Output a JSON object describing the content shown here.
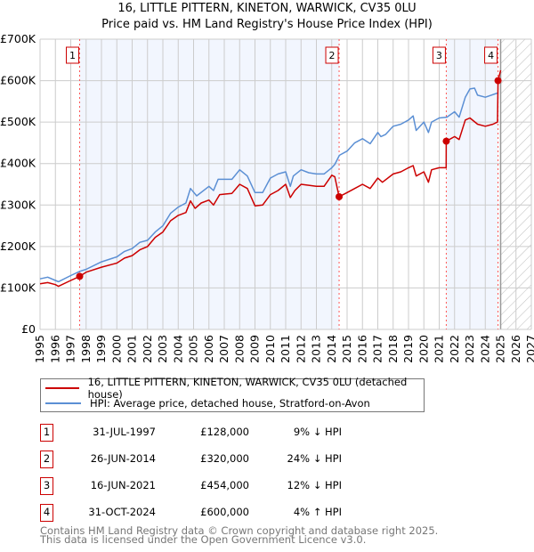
{
  "title_line1": "16, LITTLE PITTERN, KINETON, WARWICK, CV35 0LU",
  "title_line2": "Price paid vs. HM Land Registry's House Price Index (HPI)",
  "chart_data": {
    "type": "line",
    "title": "16, LITTLE PITTERN, KINETON, WARWICK, CV35 0LU — Price paid vs. HM Land Registry's House Price Index (HPI)",
    "xlim": [
      1995,
      2027
    ],
    "ylim": [
      0,
      700000
    ],
    "y_ticks": [
      {
        "v": 0,
        "label": "£0"
      },
      {
        "v": 100000,
        "label": "£100K"
      },
      {
        "v": 200000,
        "label": "£200K"
      },
      {
        "v": 300000,
        "label": "£300K"
      },
      {
        "v": 400000,
        "label": "£400K"
      },
      {
        "v": 500000,
        "label": "£500K"
      },
      {
        "v": 600000,
        "label": "£600K"
      },
      {
        "v": 700000,
        "label": "£700K"
      }
    ],
    "x_ticks": [
      "1995",
      "1996",
      "1997",
      "1998",
      "1999",
      "2000",
      "2001",
      "2002",
      "2003",
      "2004",
      "2005",
      "2006",
      "2007",
      "2008",
      "2009",
      "2010",
      "2011",
      "2012",
      "2013",
      "2014",
      "2015",
      "2016",
      "2017",
      "2018",
      "2019",
      "2020",
      "2021",
      "2022",
      "2023",
      "2024",
      "2025",
      "2026",
      "2027"
    ],
    "grid": true,
    "forecast_start": 2025,
    "series": [
      {
        "name": "16, LITTLE PITTERN, KINETON, WARWICK, CV35 0LU (detached house)",
        "color": "#cc0000",
        "x": [
          1995,
          1995.5,
          1996,
          1996.2,
          1997,
          1997.58,
          1998,
          1999,
          2000,
          2000.5,
          2001,
          2001.5,
          2002,
          2002.5,
          2003,
          2003.5,
          2004,
          2004.5,
          2004.8,
          2005.1,
          2005.5,
          2006,
          2006.3,
          2006.7,
          2007.5,
          2008,
          2008.5,
          2009,
          2009.5,
          2010,
          2010.5,
          2011,
          2011.3,
          2011.6,
          2012,
          2013,
          2013.5,
          2014,
          2014.2,
          2014.48,
          2015,
          2015.5,
          2016,
          2016.5,
          2017,
          2017.3,
          2018,
          2018.5,
          2019,
          2019.3,
          2019.5,
          2020,
          2020.3,
          2020.5,
          2021,
          2021.45,
          2021.46,
          2022,
          2022.3,
          2022.7,
          2023,
          2023.5,
          2024,
          2024.5,
          2024.8,
          2024.83,
          2025
        ],
        "y": [
          110000,
          113000,
          108000,
          104000,
          118000,
          128000,
          138000,
          150000,
          160000,
          172000,
          178000,
          192000,
          200000,
          222000,
          235000,
          262000,
          275000,
          282000,
          310000,
          292000,
          305000,
          312000,
          300000,
          325000,
          328000,
          350000,
          340000,
          298000,
          300000,
          325000,
          335000,
          350000,
          318000,
          335000,
          350000,
          345000,
          345000,
          372000,
          368000,
          320000,
          330000,
          340000,
          350000,
          340000,
          365000,
          355000,
          375000,
          380000,
          390000,
          395000,
          370000,
          380000,
          355000,
          385000,
          390000,
          390000,
          454000,
          465000,
          458000,
          505000,
          510000,
          495000,
          490000,
          495000,
          500000,
          600000,
          625000
        ]
      },
      {
        "name": "HPI: Average price, detached house, Stratford-on-Avon",
        "color": "#5b8fd4",
        "x": [
          1995,
          1995.5,
          1996,
          1996.2,
          1997,
          1997.58,
          1998,
          1999,
          2000,
          2000.5,
          2001,
          2001.5,
          2002,
          2002.5,
          2003,
          2003.5,
          2004,
          2004.5,
          2004.8,
          2005.2,
          2006,
          2006.3,
          2006.6,
          2007.5,
          2008,
          2008.5,
          2009,
          2009.5,
          2010,
          2010.5,
          2011,
          2011.3,
          2011.5,
          2012,
          2012.5,
          2013,
          2013.5,
          2014,
          2014.2,
          2014.5,
          2015,
          2015.5,
          2016,
          2016.5,
          2017,
          2017.2,
          2017.5,
          2018,
          2018.5,
          2019,
          2019.3,
          2019.5,
          2020,
          2020.3,
          2020.5,
          2021,
          2021.5,
          2022,
          2022.3,
          2022.7,
          2023,
          2023.3,
          2023.5,
          2024,
          2024.8
        ],
        "y": [
          122000,
          126000,
          118000,
          115000,
          130000,
          140000,
          145000,
          163000,
          175000,
          188000,
          195000,
          210000,
          215000,
          235000,
          250000,
          280000,
          295000,
          305000,
          340000,
          322000,
          345000,
          335000,
          362000,
          362000,
          385000,
          370000,
          330000,
          330000,
          365000,
          375000,
          380000,
          345000,
          370000,
          385000,
          378000,
          375000,
          375000,
          390000,
          398000,
          420000,
          430000,
          450000,
          460000,
          448000,
          475000,
          465000,
          470000,
          490000,
          495000,
          505000,
          515000,
          480000,
          500000,
          475000,
          500000,
          510000,
          512000,
          525000,
          512000,
          560000,
          580000,
          582000,
          565000,
          560000,
          570000
        ]
      }
    ],
    "sales": [
      {
        "label": "1",
        "x": 1997.58,
        "y": 128000
      },
      {
        "label": "2",
        "x": 2014.48,
        "y": 320000
      },
      {
        "label": "3",
        "x": 2021.46,
        "y": 454000
      },
      {
        "label": "4",
        "x": 2024.83,
        "y": 600000
      }
    ]
  },
  "legend": {
    "property": "16, LITTLE PITTERN, KINETON, WARWICK, CV35 0LU (detached house)",
    "hpi": "HPI: Average price, detached house, Stratford-on-Avon"
  },
  "transactions": [
    {
      "num": "1",
      "date": "31-JUL-1997",
      "price": "£128,000",
      "hpi": "9% ↓ HPI"
    },
    {
      "num": "2",
      "date": "26-JUN-2014",
      "price": "£320,000",
      "hpi": "24% ↓ HPI"
    },
    {
      "num": "3",
      "date": "16-JUN-2021",
      "price": "£454,000",
      "hpi": "12% ↓ HPI"
    },
    {
      "num": "4",
      "date": "31-OCT-2024",
      "price": "£600,000",
      "hpi": "4% ↑ HPI"
    }
  ],
  "footer": {
    "line1": "Contains HM Land Registry data © Crown copyright and database right 2025.",
    "line2": "This data is licensed under the Open Government Licence v3.0."
  }
}
